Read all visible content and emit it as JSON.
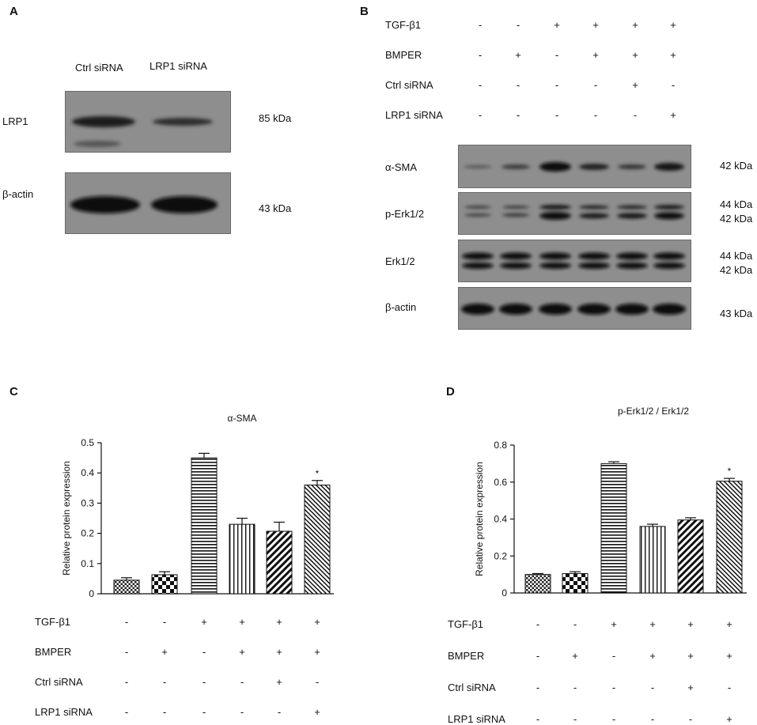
{
  "panels": {
    "a": "A",
    "b": "B",
    "c": "C",
    "d": "D"
  },
  "panel_a": {
    "lane_labels": [
      "Ctrl siRNA",
      "LRP1 siRNA"
    ],
    "blots": [
      {
        "name": "LRP1",
        "kda": "85 kDa"
      },
      {
        "name": "β-actin",
        "kda": "43 kDa"
      }
    ]
  },
  "panel_b": {
    "conditions": [
      {
        "label": "TGF-β1",
        "signs": [
          "-",
          "-",
          "+",
          "+",
          "+",
          "+"
        ]
      },
      {
        "label": "BMPER",
        "signs": [
          "-",
          "+",
          "-",
          "+",
          "+",
          "+"
        ]
      },
      {
        "label": "Ctrl siRNA",
        "signs": [
          "-",
          "-",
          "-",
          "-",
          "+",
          "-"
        ]
      },
      {
        "label": "LRP1 siRNA",
        "signs": [
          "-",
          "-",
          "-",
          "-",
          "-",
          "+"
        ]
      }
    ],
    "blots": [
      {
        "name": "α-SMA",
        "kda": [
          "42 kDa"
        ]
      },
      {
        "name": "p-Erk1/2",
        "kda": [
          "44 kDa",
          "42 kDa"
        ]
      },
      {
        "name": "Erk1/2",
        "kda": [
          "44 kDa",
          "42 kDa"
        ]
      },
      {
        "name": "β-actin",
        "kda": [
          "43 kDa"
        ]
      }
    ]
  },
  "chart_data": [
    {
      "type": "bar",
      "title": "α-SMA",
      "ylabel": "Relative protein expression",
      "ylim": [
        0,
        0.5
      ],
      "yticks": [
        "0",
        "0.1",
        "0.2",
        "0.3",
        "0.4",
        "0.5"
      ],
      "values": [
        0.045,
        0.063,
        0.45,
        0.23,
        0.207,
        0.36
      ],
      "errors": [
        0.008,
        0.01,
        0.015,
        0.02,
        0.03,
        0.015
      ],
      "annotations": [
        "",
        "",
        "",
        "",
        "",
        "*"
      ],
      "conditions": [
        {
          "label": "TGF-β1",
          "signs": [
            "-",
            "-",
            "+",
            "+",
            "+",
            "+"
          ]
        },
        {
          "label": "BMPER",
          "signs": [
            "-",
            "+",
            "-",
            "+",
            "+",
            "+"
          ]
        },
        {
          "label": "Ctrl siRNA",
          "signs": [
            "-",
            "-",
            "-",
            "-",
            "+",
            "-"
          ]
        },
        {
          "label": "LRP1 siRNA",
          "signs": [
            "-",
            "-",
            "-",
            "-",
            "-",
            "+"
          ]
        }
      ]
    },
    {
      "type": "bar",
      "title": "p-Erk1/2 / Erk1/2",
      "ylabel": "Relative protein expression",
      "ylim": [
        0,
        0.8
      ],
      "yticks": [
        "0",
        "0.2",
        "0.4",
        "0.6",
        "0.8"
      ],
      "values": [
        0.1,
        0.105,
        0.7,
        0.36,
        0.395,
        0.605
      ],
      "errors": [
        0.005,
        0.01,
        0.01,
        0.012,
        0.012,
        0.015
      ],
      "annotations": [
        "",
        "",
        "",
        "",
        "",
        "*"
      ],
      "conditions": [
        {
          "label": "TGF-β1",
          "signs": [
            "-",
            "-",
            "+",
            "+",
            "+",
            "+"
          ]
        },
        {
          "label": "BMPER",
          "signs": [
            "-",
            "+",
            "-",
            "+",
            "+",
            "+"
          ]
        },
        {
          "label": "Ctrl siRNA",
          "signs": [
            "-",
            "-",
            "-",
            "-",
            "+",
            "-"
          ]
        },
        {
          "label": "LRP1 siRNA",
          "signs": [
            "-",
            "-",
            "-",
            "-",
            "-",
            "+"
          ]
        }
      ]
    }
  ]
}
